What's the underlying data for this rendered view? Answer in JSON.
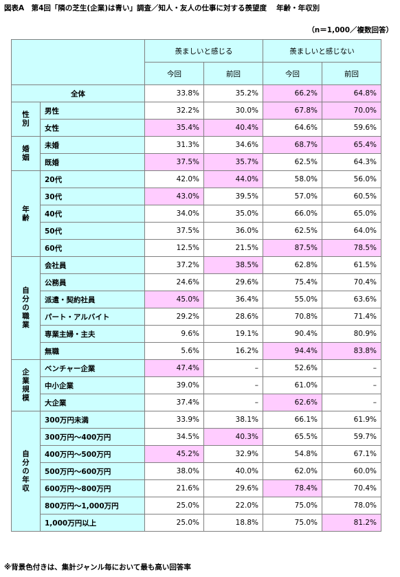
{
  "title": "図表A　第4回「隣の芝生(企業)は青い」調査／知人・友人の仕事に対する羨望度　 年齢・年収別",
  "note_n": "（n＝1,000／複数回答）",
  "footnote": "※背景色付きは、集計ジャンル毎において最も高い回答率",
  "headers": {
    "group1": "羨ましいと感じる",
    "group2": "羨ましいと感じない",
    "this_time": "今回",
    "last_time": "前回"
  },
  "highlight_color": "#ffccff",
  "header_color": "#ccffff",
  "total": {
    "label": "全体",
    "values": [
      "33.8%",
      "35.2%",
      "66.2%",
      "64.8%"
    ],
    "hl": [
      false,
      false,
      true,
      true
    ]
  },
  "sections": [
    {
      "label": "性別",
      "rows": [
        {
          "label": "男性",
          "values": [
            "32.2%",
            "30.0%",
            "67.8%",
            "70.0%"
          ],
          "hl": [
            false,
            false,
            true,
            true
          ]
        },
        {
          "label": "女性",
          "values": [
            "35.4%",
            "40.4%",
            "64.6%",
            "59.6%"
          ],
          "hl": [
            true,
            true,
            false,
            false
          ]
        }
      ]
    },
    {
      "label": "婚姻",
      "rows": [
        {
          "label": "未婚",
          "values": [
            "31.3%",
            "34.6%",
            "68.7%",
            "65.4%"
          ],
          "hl": [
            false,
            false,
            true,
            true
          ]
        },
        {
          "label": "既婚",
          "values": [
            "37.5%",
            "35.7%",
            "62.5%",
            "64.3%"
          ],
          "hl": [
            true,
            true,
            false,
            false
          ]
        }
      ]
    },
    {
      "label": "年齢",
      "rows": [
        {
          "label": "20代",
          "values": [
            "42.0%",
            "44.0%",
            "58.0%",
            "56.0%"
          ],
          "hl": [
            false,
            true,
            false,
            false
          ]
        },
        {
          "label": "30代",
          "values": [
            "43.0%",
            "39.5%",
            "57.0%",
            "60.5%"
          ],
          "hl": [
            true,
            false,
            false,
            false
          ]
        },
        {
          "label": "40代",
          "values": [
            "34.0%",
            "35.0%",
            "66.0%",
            "65.0%"
          ],
          "hl": [
            false,
            false,
            false,
            false
          ]
        },
        {
          "label": "50代",
          "values": [
            "37.5%",
            "36.0%",
            "62.5%",
            "64.0%"
          ],
          "hl": [
            false,
            false,
            false,
            false
          ]
        },
        {
          "label": "60代",
          "values": [
            "12.5%",
            "21.5%",
            "87.5%",
            "78.5%"
          ],
          "hl": [
            false,
            false,
            true,
            true
          ]
        }
      ]
    },
    {
      "label": "自分の職業",
      "rows": [
        {
          "label": "会社員",
          "values": [
            "37.2%",
            "38.5%",
            "62.8%",
            "61.5%"
          ],
          "hl": [
            false,
            true,
            false,
            false
          ]
        },
        {
          "label": "公務員",
          "values": [
            "24.6%",
            "29.6%",
            "75.4%",
            "70.4%"
          ],
          "hl": [
            false,
            false,
            false,
            false
          ]
        },
        {
          "label": "派遣・契約社員",
          "values": [
            "45.0%",
            "36.4%",
            "55.0%",
            "63.6%"
          ],
          "hl": [
            true,
            false,
            false,
            false
          ]
        },
        {
          "label": "パート・アルバイト",
          "values": [
            "29.2%",
            "28.6%",
            "70.8%",
            "71.4%"
          ],
          "hl": [
            false,
            false,
            false,
            false
          ]
        },
        {
          "label": "専業主婦・主夫",
          "values": [
            "9.6%",
            "19.1%",
            "90.4%",
            "80.9%"
          ],
          "hl": [
            false,
            false,
            false,
            false
          ]
        },
        {
          "label": "無職",
          "values": [
            "5.6%",
            "16.2%",
            "94.4%",
            "83.8%"
          ],
          "hl": [
            false,
            false,
            true,
            true
          ]
        }
      ]
    },
    {
      "label": "企業規模",
      "rows": [
        {
          "label": "ベンチャー企業",
          "values": [
            "47.4%",
            "–",
            "52.6%",
            "–"
          ],
          "hl": [
            true,
            false,
            false,
            false
          ]
        },
        {
          "label": "中小企業",
          "values": [
            "39.0%",
            "–",
            "61.0%",
            "–"
          ],
          "hl": [
            false,
            false,
            false,
            false
          ]
        },
        {
          "label": "大企業",
          "values": [
            "37.4%",
            "–",
            "62.6%",
            "–"
          ],
          "hl": [
            false,
            false,
            true,
            false
          ]
        }
      ]
    },
    {
      "label": "自分の年収",
      "rows": [
        {
          "label": "300万円未満",
          "values": [
            "33.9%",
            "38.1%",
            "66.1%",
            "61.9%"
          ],
          "hl": [
            false,
            false,
            false,
            false
          ]
        },
        {
          "label": "300万円～400万円",
          "values": [
            "34.5%",
            "40.3%",
            "65.5%",
            "59.7%"
          ],
          "hl": [
            false,
            true,
            false,
            false
          ]
        },
        {
          "label": "400万円～500万円",
          "values": [
            "45.2%",
            "32.9%",
            "54.8%",
            "67.1%"
          ],
          "hl": [
            true,
            false,
            false,
            false
          ]
        },
        {
          "label": "500万円～600万円",
          "values": [
            "38.0%",
            "40.0%",
            "62.0%",
            "60.0%"
          ],
          "hl": [
            false,
            false,
            false,
            false
          ]
        },
        {
          "label": "600万円～800万円",
          "values": [
            "21.6%",
            "29.6%",
            "78.4%",
            "70.4%"
          ],
          "hl": [
            false,
            false,
            true,
            false
          ]
        },
        {
          "label": "800万円～1,000万円",
          "values": [
            "25.0%",
            "22.0%",
            "75.0%",
            "78.0%"
          ],
          "hl": [
            false,
            false,
            false,
            false
          ]
        },
        {
          "label": "1,000万円以上",
          "values": [
            "25.0%",
            "18.8%",
            "75.0%",
            "81.2%"
          ],
          "hl": [
            false,
            false,
            false,
            true
          ]
        }
      ]
    }
  ]
}
